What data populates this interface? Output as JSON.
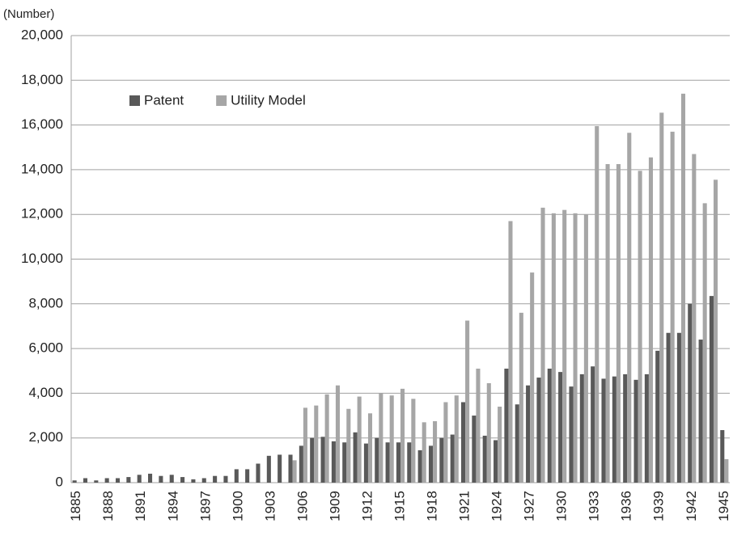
{
  "chart_data": {
    "type": "bar",
    "y_label": "(Number)",
    "categories": [
      "1885",
      null,
      null,
      "1888",
      null,
      null,
      "1891",
      null,
      null,
      "1894",
      null,
      null,
      "1897",
      null,
      null,
      "1900",
      null,
      null,
      "1903",
      null,
      null,
      "1906",
      null,
      null,
      "1909",
      null,
      null,
      "1912",
      null,
      null,
      "1915",
      null,
      null,
      "1918",
      null,
      null,
      "1921",
      null,
      null,
      "1924",
      null,
      null,
      "1927",
      null,
      null,
      "1930",
      null,
      null,
      "1933",
      null,
      null,
      "1936",
      null,
      null,
      "1939",
      null,
      null,
      "1942",
      null,
      null,
      "1945"
    ],
    "series": [
      {
        "name": "Patent",
        "color": "#595959",
        "values": [
          100,
          200,
          100,
          200,
          200,
          250,
          350,
          400,
          300,
          350,
          250,
          150,
          200,
          300,
          300,
          600,
          600,
          850,
          1200,
          1250,
          1250,
          1650,
          2000,
          2050,
          1850,
          1800,
          2250,
          1750,
          2000,
          1800,
          1800,
          1800,
          1450,
          1650,
          2000,
          2150,
          3600,
          3000,
          2100,
          1900,
          5100,
          3500,
          4350,
          4700,
          5100,
          4950,
          4300,
          4850,
          5200,
          4650,
          4750,
          4850,
          4600,
          4850,
          5900,
          6700,
          6700,
          8000,
          6400,
          8350,
          2350
        ]
      },
      {
        "name": "Utility Model",
        "color": "#a6a6a6",
        "values": [
          null,
          null,
          null,
          null,
          null,
          null,
          null,
          null,
          null,
          null,
          null,
          null,
          null,
          null,
          null,
          null,
          null,
          null,
          null,
          null,
          1000,
          3350,
          3450,
          3950,
          4350,
          3300,
          3850,
          3100,
          4000,
          3900,
          4200,
          3750,
          2700,
          2750,
          3600,
          3900,
          7250,
          5100,
          4450,
          3400,
          11700,
          7600,
          9400,
          12300,
          12050,
          12200,
          12050,
          12000,
          15950,
          14250,
          14250,
          15650,
          13950,
          14550,
          16550,
          15700,
          17400,
          14700,
          12500,
          13550,
          1050
        ]
      }
    ],
    "ylim": [
      0,
      20000
    ],
    "yticks": [
      0,
      {
        "value": 2000,
        "label": "2,000"
      },
      {
        "value": 4000,
        "label": "4,000"
      },
      {
        "value": 6000,
        "label": "6,000"
      },
      {
        "value": 8000,
        "label": "8,000"
      },
      {
        "value": 10000,
        "label": "10,000"
      },
      {
        "value": 12000,
        "label": "12,000"
      },
      {
        "value": 14000,
        "label": "14,000"
      },
      {
        "value": 16000,
        "label": "16,000"
      },
      {
        "value": 18000,
        "label": "18,000"
      },
      {
        "value": 20000,
        "label": "20,000"
      }
    ],
    "grid": true,
    "legend": "upper-left"
  }
}
